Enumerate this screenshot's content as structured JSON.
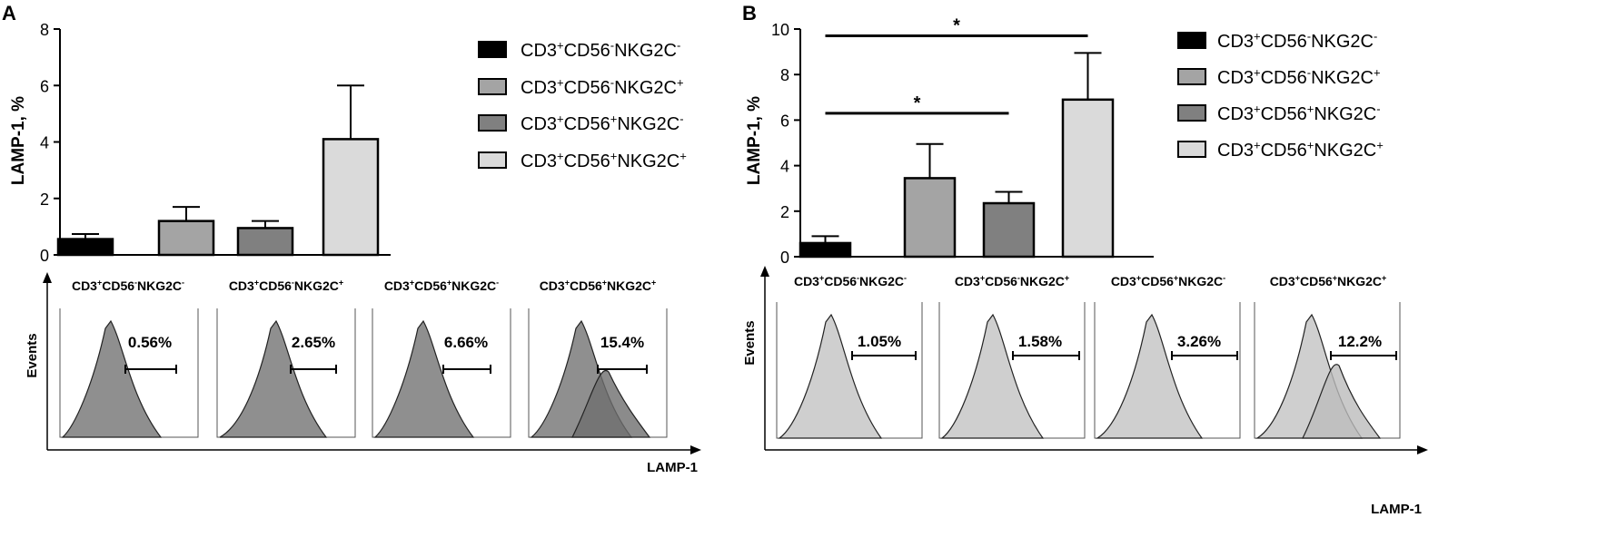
{
  "chart_data": [
    {
      "panel": "A",
      "type": "bar",
      "ylabel": "LAMP-1, %",
      "ylim": [
        0,
        8
      ],
      "yticks": [
        0,
        2,
        4,
        6,
        8
      ],
      "categories": [
        "CD3+CD56-NKG2C-",
        "CD3+CD56-NKG2C+",
        "CD3+CD56+NKG2C-",
        "CD3+CD56+NKG2C+"
      ],
      "values": [
        0.56,
        1.2,
        0.95,
        4.1
      ],
      "errors": [
        0.18,
        0.5,
        0.25,
        1.9
      ],
      "colors": [
        "#000000",
        "#a4a4a4",
        "#808080",
        "#dadada"
      ],
      "legend": [
        {
          "base": "CD3",
          "s1": "+",
          "mid": "CD56",
          "s2": "-",
          "tail": "NKG2C",
          "s3": "-"
        },
        {
          "base": "CD3",
          "s1": "+",
          "mid": "CD56",
          "s2": "-",
          "tail": "NKG2C",
          "s3": "+"
        },
        {
          "base": "CD3",
          "s1": "+",
          "mid": "CD56",
          "s2": "+",
          "tail": "NKG2C",
          "s3": "-"
        },
        {
          "base": "CD3",
          "s1": "+",
          "mid": "CD56",
          "s2": "+",
          "tail": "NKG2C",
          "s3": "+"
        }
      ],
      "significance": [],
      "histograms": {
        "y_axis_label": "Events",
        "x_axis_label": "LAMP-1",
        "titles": [
          {
            "base": "CD3",
            "s1": "+",
            "mid": "CD56",
            "s2": "-",
            "tail": "NKG2C",
            "s3": "-"
          },
          {
            "base": "CD3",
            "s1": "+",
            "mid": "CD56",
            "s2": "-",
            "tail": "NKG2C",
            "s3": "+"
          },
          {
            "base": "CD3",
            "s1": "+",
            "mid": "CD56",
            "s2": "+",
            "tail": "NKG2C",
            "s3": "-"
          },
          {
            "base": "CD3",
            "s1": "+",
            "mid": "CD56",
            "s2": "+",
            "tail": "NKG2C",
            "s3": "+"
          }
        ],
        "percentages": [
          "0.56%",
          "2.65%",
          "6.66%",
          "15.4%"
        ]
      }
    },
    {
      "panel": "B",
      "type": "bar",
      "ylabel": "LAMP-1, %",
      "ylim": [
        0,
        10
      ],
      "yticks": [
        0,
        2,
        4,
        6,
        8,
        10
      ],
      "categories": [
        "CD3+CD56-NKG2C-",
        "CD3+CD56-NKG2C+",
        "CD3+CD56+NKG2C-",
        "CD3+CD56+NKG2C+"
      ],
      "values": [
        0.6,
        3.45,
        2.35,
        6.9
      ],
      "errors": [
        0.3,
        1.5,
        0.5,
        2.05
      ],
      "colors": [
        "#000000",
        "#a4a4a4",
        "#808080",
        "#dadada"
      ],
      "legend": [
        {
          "base": "CD3",
          "s1": "+",
          "mid": "CD56",
          "s2": "-",
          "tail": "NKG2C",
          "s3": "-"
        },
        {
          "base": "CD3",
          "s1": "+",
          "mid": "CD56",
          "s2": "-",
          "tail": "NKG2C",
          "s3": "+"
        },
        {
          "base": "CD3",
          "s1": "+",
          "mid": "CD56",
          "s2": "+",
          "tail": "NKG2C",
          "s3": "-"
        },
        {
          "base": "CD3",
          "s1": "+",
          "mid": "CD56",
          "s2": "+",
          "tail": "NKG2C",
          "s3": "+"
        }
      ],
      "significance": [
        {
          "from": 0,
          "to": 3,
          "y": 9.7,
          "label": "*"
        },
        {
          "from": 0,
          "to": 2,
          "y": 6.3,
          "label": "*"
        }
      ],
      "histograms": {
        "y_axis_label": "Events",
        "x_axis_label": "LAMP-1",
        "titles": [
          {
            "base": "CD3",
            "s1": "+",
            "mid": "CD56",
            "s2": "-",
            "tail": "NKG2C",
            "s3": "-"
          },
          {
            "base": "CD3",
            "s1": "+",
            "mid": "CD56",
            "s2": "-",
            "tail": "NKG2C",
            "s3": "+"
          },
          {
            "base": "CD3",
            "s1": "+",
            "mid": "CD56",
            "s2": "+",
            "tail": "NKG2C",
            "s3": "-"
          },
          {
            "base": "CD3",
            "s1": "+",
            "mid": "CD56",
            "s2": "+",
            "tail": "NKG2C",
            "s3": "+"
          }
        ],
        "percentages": [
          "1.05%",
          "1.58%",
          "3.26%",
          "12.2%"
        ]
      }
    }
  ]
}
